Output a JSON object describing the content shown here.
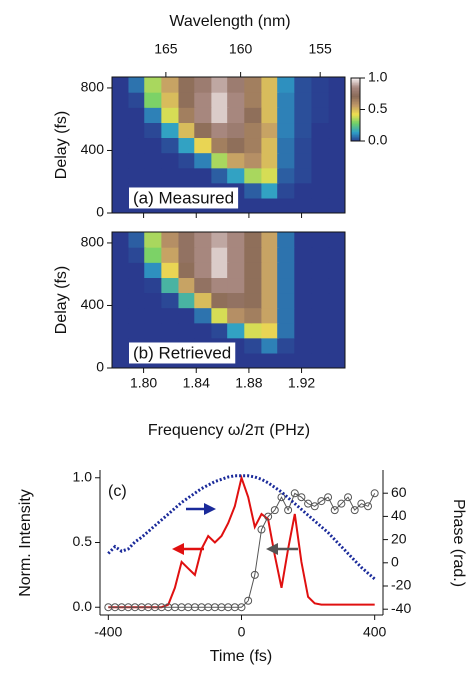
{
  "chart_data": [
    {
      "type": "heatmap",
      "title": "(a) Measured",
      "x2label": "Wavelength (nm)",
      "ylabel": "Delay (fs)",
      "x": [
        1.782,
        1.795,
        1.807,
        1.82,
        1.833,
        1.845,
        1.858,
        1.87,
        1.883,
        1.896,
        1.908,
        1.921,
        1.934,
        1.947
      ],
      "y": [
        48,
        145,
        242,
        338,
        435,
        532,
        628,
        725,
        822
      ],
      "z": [
        [
          0,
          0,
          0,
          0,
          0,
          0,
          0,
          0,
          0,
          0,
          0,
          0,
          0,
          0
        ],
        [
          0,
          0,
          0,
          0,
          0,
          0,
          0,
          0,
          0.05,
          0.15,
          0.02,
          0,
          0,
          0
        ],
        [
          0,
          0,
          0,
          0,
          0,
          0,
          0.05,
          0.15,
          0.35,
          0.4,
          0.05,
          0.02,
          0,
          0
        ],
        [
          0,
          0,
          0,
          0,
          0.02,
          0.1,
          0.35,
          0.55,
          0.6,
          0.5,
          0.08,
          0.02,
          0,
          0
        ],
        [
          0,
          0,
          0,
          0.03,
          0.15,
          0.45,
          0.65,
          0.7,
          0.65,
          0.5,
          0.08,
          0.02,
          0,
          0
        ],
        [
          0,
          0,
          0.02,
          0.15,
          0.5,
          0.7,
          0.85,
          0.8,
          0.65,
          0.55,
          0.1,
          0.03,
          0,
          0
        ],
        [
          0,
          0,
          0.1,
          0.4,
          0.65,
          0.85,
          0.95,
          0.85,
          0.7,
          0.5,
          0.1,
          0.03,
          0.01,
          0
        ],
        [
          0,
          0.02,
          0.3,
          0.5,
          0.7,
          0.85,
          0.95,
          0.85,
          0.65,
          0.5,
          0.1,
          0.03,
          0.01,
          0
        ],
        [
          0,
          0.08,
          0.35,
          0.55,
          0.7,
          0.8,
          0.9,
          0.8,
          0.65,
          0.5,
          0.12,
          0.03,
          0.01,
          0
        ]
      ],
      "xlim": [
        1.776,
        1.953
      ],
      "ylim": [
        0,
        870
      ],
      "yticks": [
        0,
        400,
        800
      ],
      "x2ticks": [
        165,
        160,
        155
      ],
      "zlim": [
        0,
        1
      ],
      "zticks": [
        {
          "value": 0,
          "label": "0.0"
        },
        0.5,
        {
          "value": 1,
          "label": "1.0"
        }
      ],
      "colormap": [
        "#2a3a8e",
        "#2fa0c8",
        "#6fd06a",
        "#f0e050",
        "#c09868",
        "#8a6a58",
        "#a88880",
        "#f6f0f0"
      ]
    },
    {
      "type": "heatmap",
      "title": "(b) Retrieved",
      "xlabel": "Frequency ω/2π (PHz)",
      "ylabel": "Delay (fs)",
      "x": [
        1.782,
        1.795,
        1.807,
        1.82,
        1.833,
        1.845,
        1.858,
        1.87,
        1.883,
        1.896,
        1.908,
        1.921,
        1.934,
        1.947
      ],
      "y": [
        48,
        145,
        242,
        338,
        435,
        532,
        628,
        725,
        822
      ],
      "z": [
        [
          0,
          0,
          0,
          0,
          0,
          0,
          0,
          0,
          0,
          0,
          0,
          0,
          0,
          0
        ],
        [
          0,
          0,
          0,
          0,
          0,
          0,
          0,
          0,
          0.02,
          0.1,
          0.02,
          0,
          0,
          0
        ],
        [
          0,
          0,
          0,
          0,
          0,
          0,
          0.02,
          0.15,
          0.4,
          0.45,
          0.08,
          0,
          0,
          0
        ],
        [
          0,
          0,
          0,
          0,
          0,
          0.08,
          0.4,
          0.6,
          0.65,
          0.55,
          0.08,
          0,
          0,
          0
        ],
        [
          0,
          0,
          0,
          0.02,
          0.2,
          0.5,
          0.7,
          0.75,
          0.7,
          0.55,
          0.08,
          0,
          0,
          0
        ],
        [
          0,
          0,
          0.01,
          0.2,
          0.55,
          0.75,
          0.85,
          0.85,
          0.7,
          0.55,
          0.08,
          0,
          0,
          0
        ],
        [
          0,
          0,
          0.12,
          0.45,
          0.7,
          0.85,
          0.95,
          0.85,
          0.7,
          0.55,
          0.08,
          0,
          0,
          0
        ],
        [
          0,
          0.02,
          0.3,
          0.55,
          0.75,
          0.85,
          0.95,
          0.85,
          0.7,
          0.55,
          0.08,
          0,
          0,
          0
        ],
        [
          0,
          0.05,
          0.35,
          0.6,
          0.75,
          0.85,
          0.9,
          0.85,
          0.7,
          0.55,
          0.08,
          0,
          0,
          0
        ]
      ],
      "xlim": [
        1.776,
        1.953
      ],
      "ylim": [
        0,
        870
      ],
      "yticks": [
        0,
        400,
        800
      ],
      "xticks": [
        {
          "value": 1.8,
          "label": "1.80"
        },
        {
          "value": 1.84,
          "label": "1.84"
        },
        {
          "value": 1.88,
          "label": "1.88"
        },
        {
          "value": 1.92,
          "label": "1.92"
        }
      ],
      "colormap": [
        "#2a3a8e",
        "#2fa0c8",
        "#6fd06a",
        "#f0e050",
        "#c09868",
        "#8a6a58",
        "#a88880",
        "#f6f0f0"
      ]
    },
    {
      "type": "line",
      "title": "(c)",
      "xlabel": "Time (fs)",
      "ylabel": "Norm. Intensity",
      "y2label": "Phase (rad.)",
      "x": [
        -400,
        -380,
        -360,
        -340,
        -320,
        -300,
        -280,
        -260,
        -240,
        -220,
        -200,
        -180,
        -160,
        -140,
        -120,
        -100,
        -80,
        -60,
        -40,
        -20,
        0,
        20,
        40,
        60,
        80,
        100,
        120,
        140,
        160,
        180,
        200,
        220,
        240,
        260,
        280,
        300,
        320,
        340,
        360,
        380,
        400
      ],
      "series": [
        {
          "color": "#e01010",
          "style": "line",
          "values": [
            0,
            0,
            0,
            0,
            0,
            0,
            0,
            0,
            0,
            0.02,
            0.15,
            0.35,
            0.3,
            0.25,
            0.45,
            0.55,
            0.5,
            0.55,
            0.65,
            0.78,
            1.0,
            0.85,
            0.62,
            0.72,
            0.68,
            0.4,
            0.15,
            0.45,
            0.72,
            0.35,
            0.08,
            0.03,
            0.02,
            0.02,
            0.02,
            0.02,
            0.02,
            0.02,
            0.02,
            0.02,
            0.02
          ]
        },
        {
          "color": "#555555",
          "style": "circles",
          "values": [
            0,
            0,
            0,
            0,
            0,
            0,
            0,
            0,
            0,
            0,
            0,
            0,
            0,
            0,
            0,
            0,
            0,
            0,
            0,
            0,
            0,
            0.05,
            0.25,
            0.6,
            0.7,
            0.75,
            0.85,
            0.75,
            0.88,
            0.85,
            0.8,
            0.78,
            0.82,
            0.85,
            0.75,
            0.8,
            0.85,
            0.75,
            0.8,
            0.78,
            0.88
          ]
        },
        {
          "color": "#1a2a9a",
          "style": "dotted",
          "axis": "y2",
          "values": [
            8,
            14,
            10,
            12,
            18,
            22,
            27,
            32,
            37,
            42,
            47,
            52,
            56,
            60,
            64,
            67,
            70,
            72,
            74,
            75,
            75,
            75,
            74,
            72,
            69,
            65,
            61,
            56,
            51,
            46,
            41,
            36,
            31,
            26,
            20,
            14,
            8,
            2,
            -4,
            -9,
            -14
          ]
        }
      ],
      "xlim": [
        -425,
        425
      ],
      "ylim": [
        -0.06,
        1.06
      ],
      "y2lim": [
        -45,
        80
      ],
      "xticks": [
        -400,
        0,
        400
      ],
      "yticks": [
        {
          "value": 0,
          "label": "0.0"
        },
        0.5,
        {
          "value": 1,
          "label": "1.0"
        }
      ],
      "y2ticks": [
        -40,
        -20,
        0,
        20,
        40,
        60
      ]
    }
  ]
}
